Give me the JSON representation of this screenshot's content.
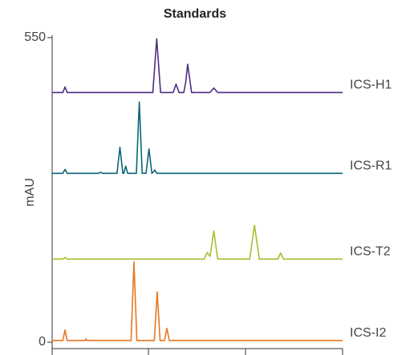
{
  "chart_data": {
    "type": "line",
    "title": "Standards",
    "y_label": "mAU",
    "ylim": [
      0,
      550
    ],
    "yticks": [
      0,
      550
    ],
    "xlim": [
      0,
      30
    ],
    "series": [
      {
        "name": "ICS-H1",
        "color": "#4b2e83",
        "x": [
          0,
          1.1,
          1.33,
          1.55,
          10.4,
          10.8,
          11.2,
          12.5,
          12.8,
          13.1,
          13.6,
          13.8,
          14.0,
          14.4,
          16.3,
          16.7,
          17.1,
          30
        ],
        "values": [
          451,
          451,
          461,
          451,
          451,
          548,
          451,
          451,
          466,
          451,
          451,
          470,
          502,
          451,
          451,
          459,
          451,
          451
        ]
      },
      {
        "name": "ICS-R1",
        "color": "#0b6477",
        "x": [
          0,
          1.1,
          1.33,
          1.55,
          4.8,
          5.0,
          5.2,
          6.7,
          7.0,
          7.3,
          7.4,
          7.6,
          7.8,
          8.7,
          9.0,
          9.3,
          9.7,
          10.0,
          10.3,
          10.5,
          10.6,
          10.8,
          30
        ],
        "values": [
          305,
          305,
          312,
          305,
          305,
          307,
          305,
          305,
          352,
          305,
          305,
          318,
          305,
          305,
          434,
          305,
          305,
          349,
          305,
          308,
          311,
          305,
          305
        ]
      },
      {
        "name": "ICS-T2",
        "color": "#a9bd2e",
        "x": [
          0,
          1.1,
          1.33,
          1.55,
          15.7,
          16.0,
          16.3,
          16.7,
          17.1,
          20.4,
          20.9,
          21.4,
          23.3,
          23.6,
          23.9,
          30
        ],
        "values": [
          150,
          150,
          153,
          150,
          150,
          162,
          155,
          201,
          150,
          150,
          211,
          150,
          150,
          161,
          150,
          150
        ]
      },
      {
        "name": "ICS-I2",
        "color": "#e87722",
        "x": [
          0,
          1.1,
          1.33,
          1.55,
          3.4,
          3.5,
          3.6,
          8.15,
          8.45,
          8.75,
          10.55,
          10.85,
          11.15,
          11.6,
          11.85,
          12.1,
          30
        ],
        "values": [
          3,
          3,
          22,
          3,
          3,
          6,
          3,
          3,
          145,
          3,
          3,
          91,
          3,
          3,
          25,
          3,
          3
        ]
      }
    ]
  }
}
